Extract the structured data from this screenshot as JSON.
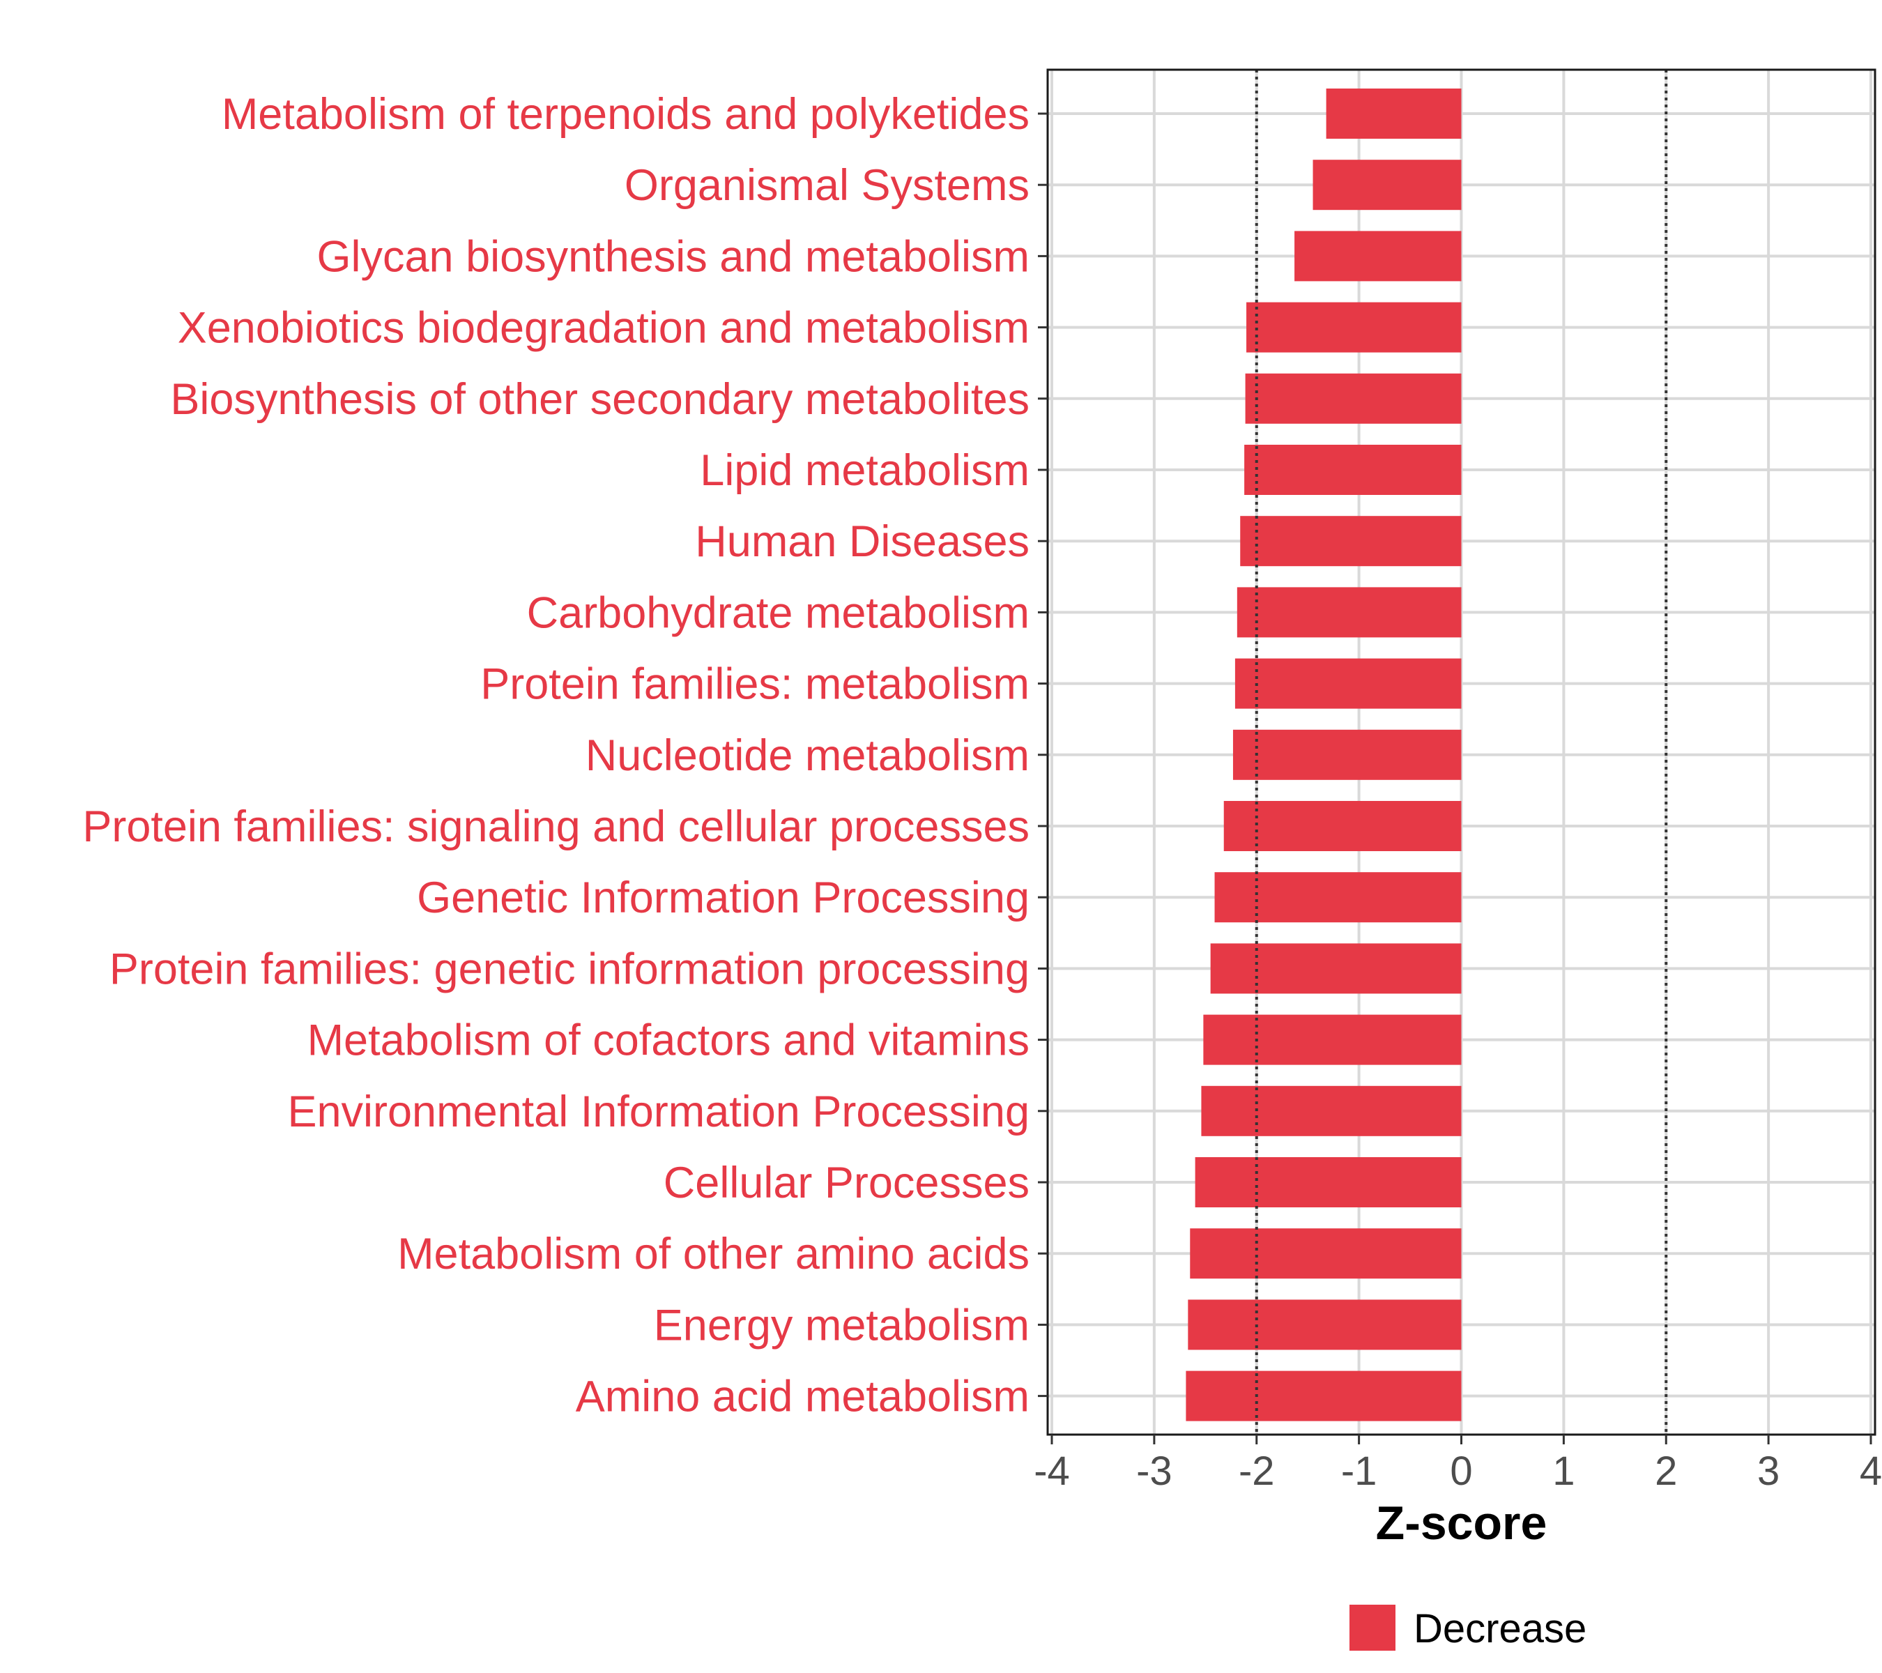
{
  "chart_data": {
    "type": "bar",
    "orientation": "horizontal",
    "title": "",
    "xlabel": "Z-score",
    "ylabel": "",
    "xlim": [
      -4,
      4
    ],
    "xticks": [
      -4,
      -3,
      -2,
      -1,
      0,
      1,
      2,
      3,
      4
    ],
    "threshold_lines": [
      -2,
      2
    ],
    "grid": true,
    "categories": [
      "Metabolism of terpenoids and polyketides",
      "Organismal Systems",
      "Glycan biosynthesis and metabolism",
      "Xenobiotics biodegradation and metabolism",
      "Biosynthesis of other secondary metabolites",
      "Lipid metabolism",
      "Human Diseases",
      "Carbohydrate metabolism",
      "Protein families: metabolism",
      "Nucleotide metabolism",
      "Protein families: signaling and cellular processes",
      "Genetic Information Processing",
      "Protein families: genetic information processing",
      "Metabolism of cofactors and vitamins",
      "Environmental Information Processing",
      "Cellular Processes",
      "Metabolism of other amino acids",
      "Energy metabolism",
      "Amino acid metabolism"
    ],
    "series": [
      {
        "name": "Decrease",
        "color": "#e63946",
        "values": [
          -1.32,
          -1.45,
          -1.63,
          -2.1,
          -2.11,
          -2.12,
          -2.16,
          -2.19,
          -2.21,
          -2.23,
          -2.32,
          -2.41,
          -2.45,
          -2.52,
          -2.54,
          -2.6,
          -2.65,
          -2.67,
          -2.69
        ]
      }
    ],
    "legend": {
      "position": "bottom",
      "entries": [
        "Decrease"
      ]
    }
  }
}
